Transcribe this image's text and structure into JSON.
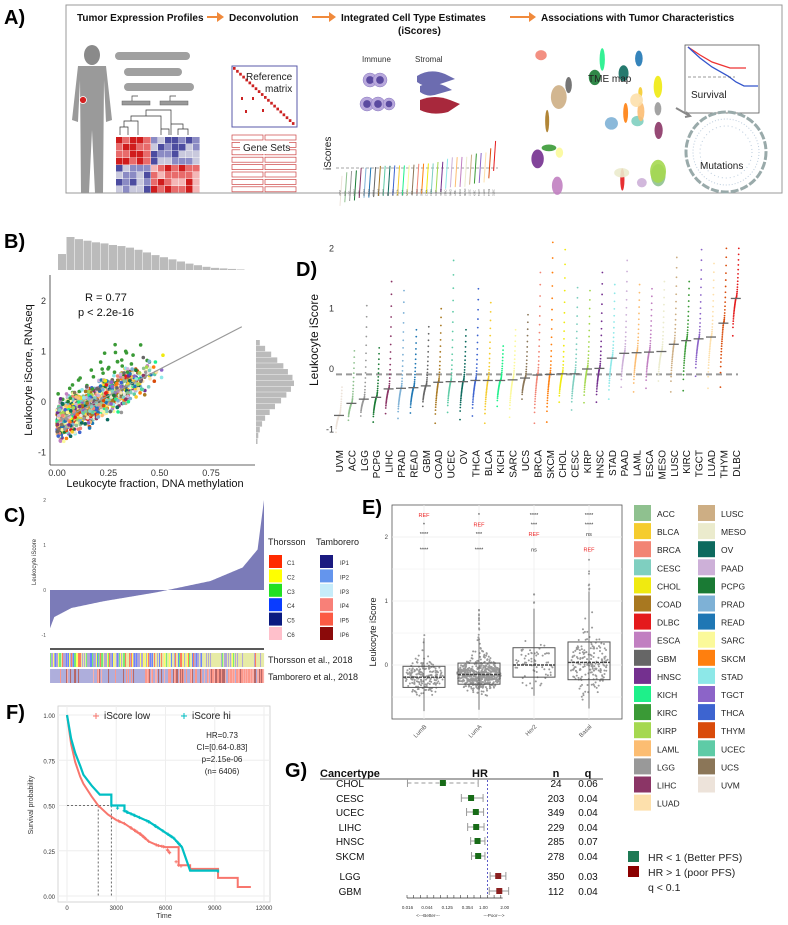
{
  "panels": {
    "a": {
      "label": "A)",
      "steps": [
        "Tumor Expression Profiles",
        "Deconvolution",
        "Integrated Cell Type Estimates",
        "Associations with Tumor Characteristics"
      ],
      "steps_sub": "(iScores)",
      "reference_matrix": [
        "Reference",
        "matrix"
      ],
      "gene_sets": "Gene Sets",
      "immune": "Immune",
      "stromal": "Stromal",
      "iscores_axis": "iScores",
      "tme_map": "TME map",
      "survival": "Survival",
      "mutations": "Mutations",
      "arrow_color": "#f08a3c"
    },
    "b": {
      "label": "B)"
    },
    "c": {
      "label": "C)"
    },
    "d": {
      "label": "D)"
    },
    "e": {
      "label": "E)"
    },
    "f": {
      "label": "F)"
    },
    "g": {
      "label": "G)"
    }
  },
  "cancer_colors": {
    "ACC": "#8fc18f",
    "BLCA": "#f5cc2e",
    "BRCA": "#f28474",
    "CESC": "#7fcfc0",
    "CHOL": "#f0ea10",
    "COAD": "#a87820",
    "DLBC": "#e41a1c",
    "ESCA": "#c17fc1",
    "GBM": "#666666",
    "HNSC": "#74308f",
    "KICH": "#1ef08a",
    "KIRC": "#3a9a36",
    "KIRP": "#a5d850",
    "LAML": "#fcbd72",
    "LGG": "#999999",
    "LIHC": "#8b3566",
    "LUAD": "#fde0ac",
    "LUSC": "#cdae84",
    "MESO": "#ebebcd",
    "OV": "#0d6a5e",
    "PAAD": "#cdb0d8",
    "PCPG": "#1a7a34",
    "PRAD": "#7eb1d6",
    "READ": "#1f77b4",
    "SARC": "#fbf99a",
    "SKCM": "#ff7f0e",
    "STAD": "#8de8e8",
    "TGCT": "#8c64c8",
    "THCA": "#3d64d0",
    "THYM": "#d94b0a",
    "UCEC": "#5ecba6",
    "UCS": "#8b7658",
    "UVM": "#ede3da"
  },
  "chart_data": [
    {
      "id": "B",
      "type": "scatter",
      "xlabel": "Leukocyte fraction, DNA methylation",
      "ylabel": "Leukocyte iScore, RNAseq",
      "xticks": [
        "0.00",
        "0.25",
        "0.50",
        "0.75"
      ],
      "xtick_values": [
        0,
        0.25,
        0.5,
        0.75
      ],
      "yticks": [
        "-1",
        "0",
        "1",
        "2"
      ],
      "ytick_values": [
        -1,
        0,
        1,
        2
      ],
      "xlim": [
        -0.03,
        0.93
      ],
      "ylim": [
        -1.2,
        2.5
      ],
      "annotation": [
        "R = 0.77",
        "p < 2.2e-16"
      ],
      "fit_line": {
        "intercept": -0.4,
        "slope": 2.1
      },
      "top_histogram": [
        30,
        62,
        58,
        55,
        52,
        50,
        47,
        45,
        42,
        38,
        33,
        28,
        24,
        20,
        16,
        12,
        9,
        6,
        4,
        3,
        2,
        1
      ],
      "right_histogram": [
        5,
        12,
        20,
        28,
        36,
        42,
        48,
        50,
        46,
        40,
        33,
        25,
        18,
        12,
        8,
        5,
        3,
        2
      ],
      "point_color_groups": "cancer type"
    },
    {
      "id": "C",
      "type": "bar",
      "ylabel": "Leukocyte iScore",
      "yticks": [
        "-1",
        "0",
        "1",
        "2"
      ],
      "ytick_values": [
        -1,
        0,
        1,
        2
      ],
      "ylim": [
        -1,
        2
      ],
      "curve_quantiles": {
        "q": [
          0,
          0.02,
          0.1,
          0.25,
          0.5,
          0.75,
          0.9,
          0.97,
          1
        ],
        "v": [
          -0.85,
          -0.6,
          -0.4,
          -0.25,
          -0.05,
          0.2,
          0.5,
          0.9,
          2.0
        ]
      },
      "bar_color": "#7b7bb8",
      "legend_thorsson": {
        "title": "Thorsson",
        "items": [
          {
            "label": "C1",
            "color": "#ff2a00"
          },
          {
            "label": "C2",
            "color": "#ffff00"
          },
          {
            "label": "C3",
            "color": "#22e022"
          },
          {
            "label": "C4",
            "color": "#0a3cff"
          },
          {
            "label": "C5",
            "color": "#0a1a80"
          },
          {
            "label": "C6",
            "color": "#ffc0cb"
          }
        ]
      },
      "legend_tamborero": {
        "title": "Tamborero",
        "items": [
          {
            "label": "IP1",
            "color": "#1a1a80"
          },
          {
            "label": "IP2",
            "color": "#6495ed"
          },
          {
            "label": "IP3",
            "color": "#c6ecfa"
          },
          {
            "label": "IP4",
            "color": "#f88078"
          },
          {
            "label": "IP5",
            "color": "#fc5a44"
          },
          {
            "label": "IP6",
            "color": "#8b0a0a"
          }
        ]
      },
      "annotation_tracks": [
        "Thorsson et al., 2018",
        "Tamborero et al., 2018"
      ]
    },
    {
      "id": "D",
      "type": "scatter",
      "ylabel": "Leukocyte iScore",
      "yticks": [
        "-1",
        "0",
        "1",
        "2"
      ],
      "ytick_values": [
        -1,
        0,
        1,
        2
      ],
      "ylim": [
        -1.15,
        2.15
      ],
      "reference_line": -0.09,
      "categories": [
        "UVM",
        "ACC",
        "LGG",
        "PCPG",
        "LIHC",
        "PRAD",
        "READ",
        "GBM",
        "COAD",
        "UCEC",
        "OV",
        "THCA",
        "BLCA",
        "KICH",
        "SARC",
        "UCS",
        "BRCA",
        "SKCM",
        "CHOL",
        "CESC",
        "KIRP",
        "HNSC",
        "STAD",
        "PAAD",
        "LAML",
        "ESCA",
        "MESO",
        "LUSC",
        "KIRC",
        "TGCT",
        "LUAD",
        "THYM",
        "DLBC"
      ],
      "medians": [
        -0.77,
        -0.57,
        -0.5,
        -0.47,
        -0.33,
        -0.32,
        -0.31,
        -0.28,
        -0.22,
        -0.21,
        -0.21,
        -0.19,
        -0.19,
        -0.19,
        -0.18,
        -0.15,
        -0.1,
        -0.09,
        -0.08,
        -0.08,
        0.0,
        0.01,
        0.18,
        0.26,
        0.27,
        0.28,
        0.29,
        0.41,
        0.47,
        0.5,
        0.53,
        0.76,
        1.17
      ],
      "mins": [
        -1.05,
        -0.85,
        -0.78,
        -0.88,
        -0.74,
        -0.82,
        -0.73,
        -0.62,
        -0.9,
        -0.72,
        -0.84,
        -0.78,
        -0.9,
        -0.62,
        -0.8,
        -0.5,
        -0.9,
        -0.88,
        -0.55,
        -0.68,
        -0.56,
        -0.55,
        -0.5,
        -0.3,
        -0.38,
        -0.32,
        -0.2,
        -0.38,
        -0.36,
        -0.12,
        -0.32,
        -0.3,
        0.55
      ],
      "maxs": [
        -0.3,
        0.3,
        1.05,
        0.35,
        1.45,
        1.3,
        0.65,
        0.7,
        1.0,
        1.8,
        0.65,
        1.33,
        1.1,
        0.38,
        0.65,
        0.9,
        1.6,
        2.1,
        1.98,
        1.35,
        1.3,
        1.6,
        1.4,
        1.8,
        1.4,
        1.33,
        1.45,
        1.85,
        1.45,
        1.98,
        1.75,
        2.0,
        2.0
      ]
    },
    {
      "id": "E",
      "type": "box",
      "ylabel": "Leukocyte iScore",
      "yticks": [
        "0",
        "1",
        "2"
      ],
      "ytick_values": [
        0,
        1,
        2
      ],
      "ylim": [
        -0.85,
        2.55
      ],
      "categories": [
        "LumB",
        "LumA",
        "Her2",
        "Basal"
      ],
      "q1": [
        -0.35,
        -0.3,
        -0.19,
        -0.23
      ],
      "median": [
        -0.19,
        -0.15,
        0.0,
        0.04
      ],
      "q3": [
        -0.02,
        0.03,
        0.27,
        0.36
      ],
      "whisker_low": [
        -0.72,
        -0.7,
        -0.48,
        -0.68
      ],
      "whisker_high": [
        0.42,
        0.4,
        0.88,
        1.15
      ],
      "point_counts": [
        190,
        560,
        70,
        190
      ],
      "significance": [
        [
          "REF",
          "*",
          "****",
          "****"
        ],
        [
          "*",
          "REF",
          "***",
          "****"
        ],
        [
          "****",
          "***",
          "REF",
          "ns"
        ],
        [
          "****",
          "****",
          "ns",
          "REF"
        ]
      ],
      "ref_color": "#ee2222"
    },
    {
      "id": "F",
      "type": "line",
      "xlabel": "Time",
      "ylabel": "Survival probability",
      "xticks": [
        "0",
        "3000",
        "6000",
        "9000",
        "12000"
      ],
      "xtick_values": [
        0,
        3000,
        6000,
        9000,
        12000
      ],
      "yticks": [
        "0.00",
        "0.25",
        "0.50",
        "0.75",
        "1.00"
      ],
      "ytick_values": [
        0,
        0.25,
        0.5,
        0.75,
        1.0
      ],
      "xlim": [
        -500,
        12500
      ],
      "ylim": [
        -0.03,
        1.03
      ],
      "series": [
        {
          "name": "iScore low",
          "color": "#f8766d",
          "x": [
            0,
            250,
            500,
            800,
            1000,
            1500,
            1900,
            2500,
            3000,
            3500,
            4000,
            4500,
            5000,
            5500,
            6000,
            6800,
            7500,
            9200,
            10400,
            11200
          ],
          "y": [
            1,
            0.84,
            0.74,
            0.66,
            0.62,
            0.55,
            0.5,
            0.45,
            0.42,
            0.4,
            0.37,
            0.34,
            0.3,
            0.28,
            0.27,
            0.17,
            0.15,
            0.1,
            0.05,
            0.05
          ]
        },
        {
          "name": "iScore hi",
          "color": "#00bfc4",
          "x": [
            0,
            250,
            500,
            800,
            1000,
            1500,
            2000,
            2700,
            3500,
            4000,
            4500,
            5000,
            5500,
            6000,
            6500,
            7000,
            7500,
            9200
          ],
          "y": [
            1,
            0.87,
            0.79,
            0.72,
            0.67,
            0.61,
            0.56,
            0.5,
            0.47,
            0.45,
            0.43,
            0.41,
            0.38,
            0.35,
            0.32,
            0.27,
            0.14,
            0.13
          ]
        }
      ],
      "median_times": [
        1900,
        2700
      ],
      "stats": [
        "HR=0.73",
        "CI=[0.64-0.83]",
        "p=2.15e-06",
        "(n= 6406)"
      ]
    },
    {
      "id": "G",
      "type": "forest",
      "headers": [
        "Cancertype",
        "HR",
        "n",
        "q"
      ],
      "rows": [
        {
          "type": "CHOL",
          "hr": 0.1,
          "lo": 0.016,
          "hi": 0.62,
          "n": "24",
          "q": "0.06"
        },
        {
          "type": "CESC",
          "hr": 0.43,
          "lo": 0.26,
          "hi": 0.8,
          "n": "203",
          "q": "0.04"
        },
        {
          "type": "UCEC",
          "hr": 0.55,
          "lo": 0.34,
          "hi": 0.82,
          "n": "349",
          "q": "0.04"
        },
        {
          "type": "LIHC",
          "hr": 0.56,
          "lo": 0.36,
          "hi": 0.84,
          "n": "229",
          "q": "0.04"
        },
        {
          "type": "HNSC",
          "hr": 0.6,
          "lo": 0.42,
          "hi": 0.88,
          "n": "285",
          "q": "0.07"
        },
        {
          "type": "SKCM",
          "hr": 0.62,
          "lo": 0.44,
          "hi": 0.88,
          "n": "278",
          "q": "0.04"
        },
        {
          "type": "LGG",
          "hr": 1.75,
          "lo": 1.15,
          "hi": 2.6,
          "n": "350",
          "q": "0.03"
        },
        {
          "type": "GBM",
          "hr": 1.85,
          "lo": 1.1,
          "hi": 3.0,
          "n": "112",
          "q": "0.04"
        }
      ],
      "xticks": [
        "0.016",
        "0.044",
        "0.125",
        "0.354",
        "1.00",
        "2.00"
      ],
      "xtick_values": [
        0.016,
        0.044,
        0.125,
        0.354,
        1.0,
        2.0
      ],
      "axis_notes": [
        "<---Better---",
        "---Poor--->"
      ],
      "legend": [
        {
          "label": "HR < 1 (Better PFS)",
          "color": "#1e7a55"
        },
        {
          "label": "HR > 1 (poor PFS)",
          "color": "#8b0000"
        }
      ],
      "legend_note": "q < 0.1"
    }
  ]
}
